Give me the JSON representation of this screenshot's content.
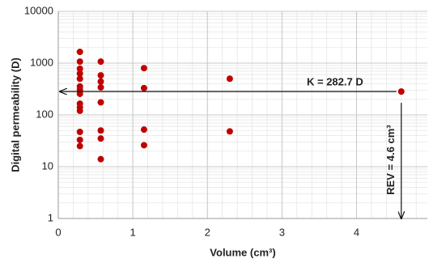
{
  "chart_data": {
    "type": "scatter",
    "x_label": "Volume (cm³)",
    "y_label": "Digital permeability (D)",
    "x": [
      0.29,
      0.29,
      0.29,
      0.29,
      0.29,
      0.29,
      0.29,
      0.29,
      0.29,
      0.29,
      0.29,
      0.29,
      0.29,
      0.29,
      0.57,
      0.57,
      0.57,
      0.57,
      0.57,
      0.57,
      0.57,
      0.57,
      1.15,
      1.15,
      1.15,
      1.15,
      2.3,
      2.3,
      4.6
    ],
    "values": [
      1650,
      1070,
      780,
      630,
      500,
      355,
      305,
      255,
      165,
      140,
      120,
      47,
      33,
      25,
      1070,
      580,
      440,
      340,
      175,
      50,
      35,
      14,
      800,
      330,
      52,
      26,
      500,
      48,
      282.7
    ],
    "color": "#c00000",
    "xlim": [
      0,
      4.95
    ],
    "xticks": [
      0,
      1,
      2,
      3,
      4
    ],
    "ylim": [
      1,
      10000
    ],
    "yticks": [
      1,
      10,
      100,
      1000,
      10000
    ],
    "y_scale": "log",
    "grid": true,
    "annotations": [
      "K = 282.7 D",
      "REV = 4.6 cm³"
    ]
  }
}
